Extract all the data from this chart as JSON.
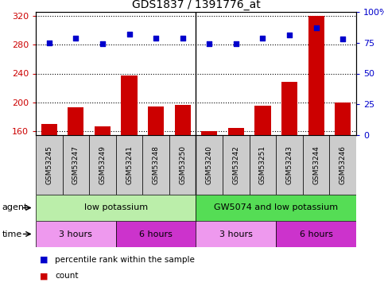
{
  "title": "GDS1837 / 1391776_at",
  "samples": [
    "GSM53245",
    "GSM53247",
    "GSM53249",
    "GSM53241",
    "GSM53248",
    "GSM53250",
    "GSM53240",
    "GSM53242",
    "GSM53251",
    "GSM53243",
    "GSM53244",
    "GSM53246"
  ],
  "counts": [
    170,
    193,
    167,
    237,
    195,
    197,
    161,
    165,
    196,
    229,
    319,
    200
  ],
  "percentiles": [
    75,
    79,
    74,
    82,
    79,
    79,
    74,
    74,
    79,
    81,
    87,
    78
  ],
  "ylim_left": [
    155,
    325
  ],
  "ylim_right": [
    0,
    100
  ],
  "yticks_left": [
    160,
    200,
    240,
    280,
    320
  ],
  "yticks_right": [
    0,
    25,
    50,
    75,
    100
  ],
  "bar_color": "#cc0000",
  "dot_color": "#0000cc",
  "agent_groups": [
    {
      "label": "low potassium",
      "start": 0,
      "end": 6,
      "color": "#bbeeaa"
    },
    {
      "label": "GW5074 and low potassium",
      "start": 6,
      "end": 12,
      "color": "#55dd55"
    }
  ],
  "time_groups": [
    {
      "label": "3 hours",
      "start": 0,
      "end": 3,
      "color": "#ee99ee"
    },
    {
      "label": "6 hours",
      "start": 3,
      "end": 6,
      "color": "#cc33cc"
    },
    {
      "label": "3 hours",
      "start": 6,
      "end": 9,
      "color": "#ee99ee"
    },
    {
      "label": "6 hours",
      "start": 9,
      "end": 12,
      "color": "#cc33cc"
    }
  ],
  "sample_bg": "#cccccc",
  "legend_count_color": "#cc0000",
  "legend_dot_color": "#0000cc"
}
